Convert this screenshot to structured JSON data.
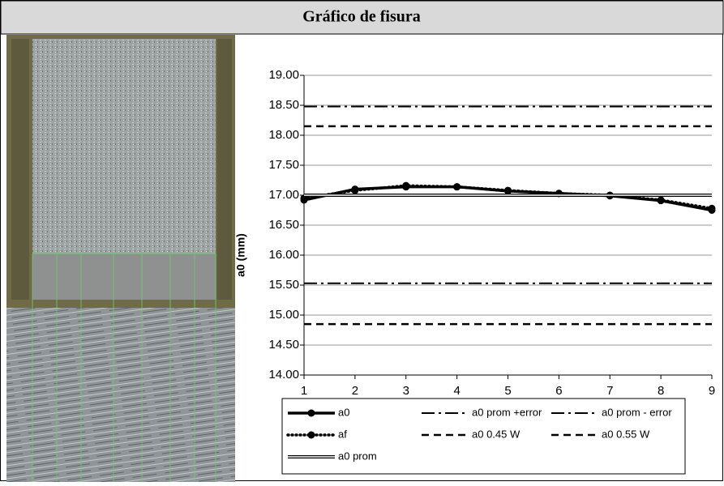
{
  "chart_data": {
    "type": "line",
    "title": "Gráfico de fisura",
    "y_label": "a0 (mm)",
    "x": [
      1,
      2,
      3,
      4,
      5,
      6,
      7,
      8,
      9
    ],
    "xlim": [
      1,
      9
    ],
    "xticks": [
      1,
      2,
      3,
      4,
      5,
      6,
      7,
      8,
      9
    ],
    "ylim": [
      14,
      19
    ],
    "yticks": [
      {
        "value": 14,
        "label": "14.00"
      },
      {
        "value": 14.5,
        "label": "14.50"
      },
      {
        "value": 15,
        "label": "15.00"
      },
      {
        "value": 15.5,
        "label": "15.50"
      },
      {
        "value": 16,
        "label": "16.00"
      },
      {
        "value": 16.5,
        "label": "16.50"
      },
      {
        "value": 17,
        "label": "17.00"
      },
      {
        "value": 17.5,
        "label": "17.50"
      },
      {
        "value": 18,
        "label": "18.00"
      },
      {
        "value": 18.5,
        "label": "18.50"
      },
      {
        "value": 19,
        "label": "19.00"
      }
    ],
    "grid": true,
    "series": [
      {
        "name": "a0",
        "color": "#000000",
        "style": "solid-marker",
        "values": [
          16.92,
          17.1,
          17.14,
          17.14,
          17.07,
          17.03,
          16.99,
          16.91,
          16.75
        ]
      },
      {
        "name": "a0 prom +error",
        "color": "#000000",
        "style": "dashdot",
        "values": [
          18.48,
          18.48,
          18.48,
          18.48,
          18.48,
          18.48,
          18.48,
          18.48,
          18.48
        ]
      },
      {
        "name": "a0 prom - error",
        "color": "#000000",
        "style": "dashdot",
        "values": [
          15.53,
          15.53,
          15.53,
          15.53,
          15.53,
          15.53,
          15.53,
          15.53,
          15.53
        ]
      },
      {
        "name": "af",
        "color": "#000000",
        "style": "dotted-marker",
        "values": [
          16.95,
          17.08,
          17.16,
          17.14,
          17.08,
          17.03,
          17.0,
          16.92,
          16.78
        ]
      },
      {
        "name": "a0 0.45 W",
        "color": "#000000",
        "style": "dash",
        "values": [
          14.85,
          14.85,
          14.85,
          14.85,
          14.85,
          14.85,
          14.85,
          14.85,
          14.85
        ]
      },
      {
        "name": "a0 0.55 W",
        "color": "#000000",
        "style": "dash",
        "values": [
          18.15,
          18.15,
          18.15,
          18.15,
          18.15,
          18.15,
          18.15,
          18.15,
          18.15
        ]
      },
      {
        "name": "a0 prom",
        "color": "#000000",
        "style": "double",
        "values": [
          17,
          17,
          17,
          17,
          17,
          17,
          17,
          17,
          17
        ]
      }
    ]
  }
}
